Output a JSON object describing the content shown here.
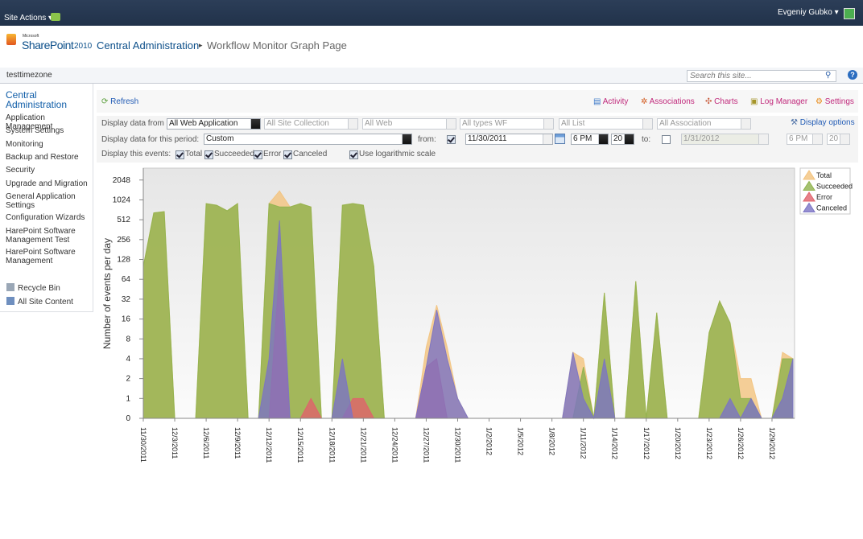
{
  "page": {
    "site_actions": "Site Actions",
    "user": "Evgeniy Gubko",
    "logo_small": "Microsoft",
    "logo": "SharePoint",
    "logo_year": "2010",
    "breadcrumb": [
      "Central Administration",
      "Workflow Monitor Graph Page"
    ],
    "site": "testtimezone",
    "search_placeholder": "Search this site...",
    "nav_heading": "Central Administration",
    "nav": [
      "Application Management",
      "System Settings",
      "Monitoring",
      "Backup and Restore",
      "Security",
      "Upgrade and Migration",
      "General Application Settings",
      "Configuration Wizards",
      "HarePoint Software Management Test",
      "HarePoint Software Management"
    ],
    "nav_bottom": [
      "Recycle Bin",
      "All Site Content"
    ],
    "refresh": "Refresh",
    "toolbar": [
      "Activity",
      "Associations",
      "Charts",
      "Log Manager",
      "Settings"
    ],
    "display_from_label": "Display data from",
    "selects": [
      "All Web Application",
      "All Site Collection",
      "All Web",
      "All types WF",
      "All List",
      "All Association"
    ],
    "display_options": "Display options",
    "period_label": "Display data for this period:",
    "period": "Custom",
    "from_label": "from:",
    "from_date": "11/30/2011",
    "from_hour": "6 PM",
    "from_min": "20",
    "to_label": "to:",
    "to_date": "1/31/2012",
    "to_hour": "6 PM",
    "to_min": "20",
    "events_label": "Display this events:",
    "log_label": "Use logarithmic scale"
  },
  "chart_data": {
    "type": "area",
    "log_scale": true,
    "y_label": "Number of events per day",
    "categories": [
      "11/30/2011",
      null,
      null,
      "12/3/2011",
      null,
      null,
      "12/6/2011",
      null,
      null,
      "12/9/2011",
      null,
      null,
      "12/12/2011",
      null,
      null,
      "12/15/2011",
      null,
      null,
      "12/18/2011",
      null,
      null,
      "12/21/2011",
      null,
      null,
      "12/24/2011",
      null,
      null,
      "12/27/2011",
      null,
      null,
      "12/30/2011",
      null,
      null,
      "1/2/2012",
      null,
      null,
      "1/5/2012",
      null,
      null,
      "1/8/2012",
      null,
      null,
      "1/11/2012",
      null,
      null,
      "1/14/2012",
      null,
      null,
      "1/17/2012",
      null,
      null,
      "1/20/2012",
      null,
      null,
      "1/23/2012",
      null,
      null,
      "1/26/2012",
      null,
      null,
      "1/29/2012",
      null,
      null
    ],
    "ylim": [
      0,
      3100
    ],
    "yticks": [
      0,
      1,
      2,
      4,
      8,
      16,
      32,
      64,
      128,
      256,
      512,
      1024,
      2048
    ],
    "series": [
      {
        "name": "Total",
        "color": "#f3c37e",
        "values": [
          100,
          650,
          680,
          0,
          0,
          0,
          900,
          850,
          700,
          900,
          0,
          0,
          900,
          1400,
          800,
          900,
          800,
          0,
          0,
          850,
          900,
          850,
          100,
          0,
          0,
          0,
          0,
          6,
          26,
          6,
          1,
          0,
          0,
          0,
          0,
          0,
          0,
          0,
          0,
          0,
          0,
          5,
          4,
          0,
          40,
          0,
          0,
          60,
          0,
          20,
          0,
          0,
          0,
          0,
          10,
          30,
          14,
          2,
          2,
          0,
          0,
          5,
          4
        ]
      },
      {
        "name": "Succeeded",
        "color": "#8fb24c",
        "values": [
          100,
          650,
          680,
          0,
          0,
          0,
          900,
          850,
          700,
          900,
          0,
          0,
          900,
          800,
          800,
          900,
          800,
          0,
          0,
          850,
          900,
          850,
          100,
          0,
          0,
          0,
          0,
          0,
          0,
          0,
          0,
          0,
          0,
          0,
          0,
          0,
          0,
          0,
          0,
          0,
          0,
          0,
          3,
          0,
          40,
          0,
          0,
          60,
          0,
          20,
          0,
          0,
          0,
          0,
          10,
          30,
          14,
          1,
          1,
          0,
          0,
          4,
          4
        ]
      },
      {
        "name": "Error",
        "color": "#e0626b",
        "values": [
          0,
          0,
          0,
          0,
          0,
          0,
          0,
          0,
          0,
          0,
          0,
          0,
          0,
          90,
          0,
          0,
          1,
          0,
          0,
          0,
          1,
          1,
          0,
          0,
          0,
          0,
          0,
          3,
          4,
          0,
          0,
          0,
          0,
          0,
          0,
          0,
          0,
          0,
          0,
          0,
          0,
          0,
          0,
          0,
          0,
          0,
          0,
          0,
          0,
          0,
          0,
          0,
          0,
          0,
          0,
          0,
          0,
          0,
          0,
          0,
          0,
          0,
          0
        ]
      },
      {
        "name": "Canceled",
        "color": "#7b73c4",
        "values": [
          0,
          0,
          0,
          0,
          0,
          0,
          0,
          0,
          0,
          0,
          0,
          0,
          4,
          500,
          0,
          0,
          0,
          0,
          0,
          4,
          0,
          0,
          0,
          0,
          0,
          0,
          0,
          3,
          22,
          4,
          1,
          0,
          0,
          0,
          0,
          0,
          0,
          0,
          0,
          0,
          0,
          5,
          1,
          0,
          4,
          0,
          0,
          0,
          0,
          0,
          0,
          0,
          0,
          0,
          0,
          0,
          1,
          0,
          1,
          0,
          0,
          1,
          4
        ]
      }
    ]
  }
}
